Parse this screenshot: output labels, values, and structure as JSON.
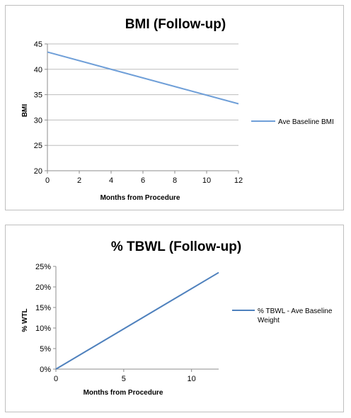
{
  "chart_data": [
    {
      "type": "line",
      "title": "BMI (Follow-up)",
      "xlabel": "Months from Procedure",
      "ylabel": "BMI",
      "x_ticks": [
        "0",
        "2",
        "4",
        "6",
        "8",
        "10",
        "12"
      ],
      "y_ticks": [
        "20",
        "25",
        "30",
        "35",
        "40",
        "45"
      ],
      "xlim": [
        0,
        12
      ],
      "ylim": [
        20,
        45
      ],
      "grid": "horizontal",
      "legend_position": "right",
      "series": [
        {
          "name": "Ave Baseline BMI",
          "color": "#6f9fd8",
          "x": [
            0,
            12
          ],
          "y": [
            43.4,
            33.2
          ]
        }
      ]
    },
    {
      "type": "line",
      "title": "% TBWL (Follow-up)",
      "xlabel": "Months from Procedure",
      "ylabel": "% WTL",
      "x_ticks": [
        "0",
        "5",
        "10"
      ],
      "y_ticks": [
        "0%",
        "5%",
        "10%",
        "15%",
        "20%",
        "25%"
      ],
      "xlim": [
        0,
        12
      ],
      "ylim": [
        0,
        25
      ],
      "grid": "none",
      "legend_position": "right",
      "series": [
        {
          "name": "% TBWL - Ave Baseline Weight",
          "color": "#4f81bd",
          "x": [
            0,
            12
          ],
          "y": [
            0,
            23.5
          ]
        }
      ]
    }
  ]
}
